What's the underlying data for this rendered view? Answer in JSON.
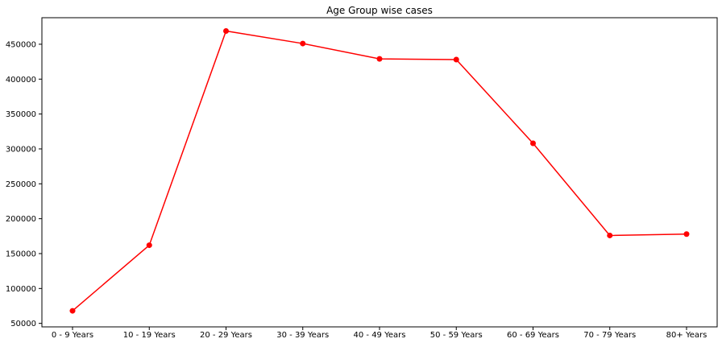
{
  "chart_data": {
    "type": "line",
    "title": "Age Group wise cases",
    "xlabel": "",
    "ylabel": "",
    "categories": [
      "0 - 9 Years",
      "10 - 19 Years",
      "20 - 29 Years",
      "30 - 39 Years",
      "40 - 49 Years",
      "50 - 59 Years",
      "60 - 69 Years",
      "70 - 79 Years",
      "80+ Years"
    ],
    "series": [
      {
        "values": [
          68000,
          162000,
          469000,
          451000,
          429000,
          428000,
          308000,
          176000,
          178000
        ],
        "color": "#ff0000",
        "marker": "circle"
      }
    ],
    "ylim": [
      45000,
      488000
    ],
    "yticks": [
      50000,
      100000,
      150000,
      200000,
      250000,
      300000,
      350000,
      400000,
      450000
    ],
    "ytick_labels": [
      "50000",
      "100000",
      "150000",
      "200000",
      "250000",
      "300000",
      "350000",
      "400000",
      "450000"
    ],
    "grid": false,
    "legend": "none"
  }
}
